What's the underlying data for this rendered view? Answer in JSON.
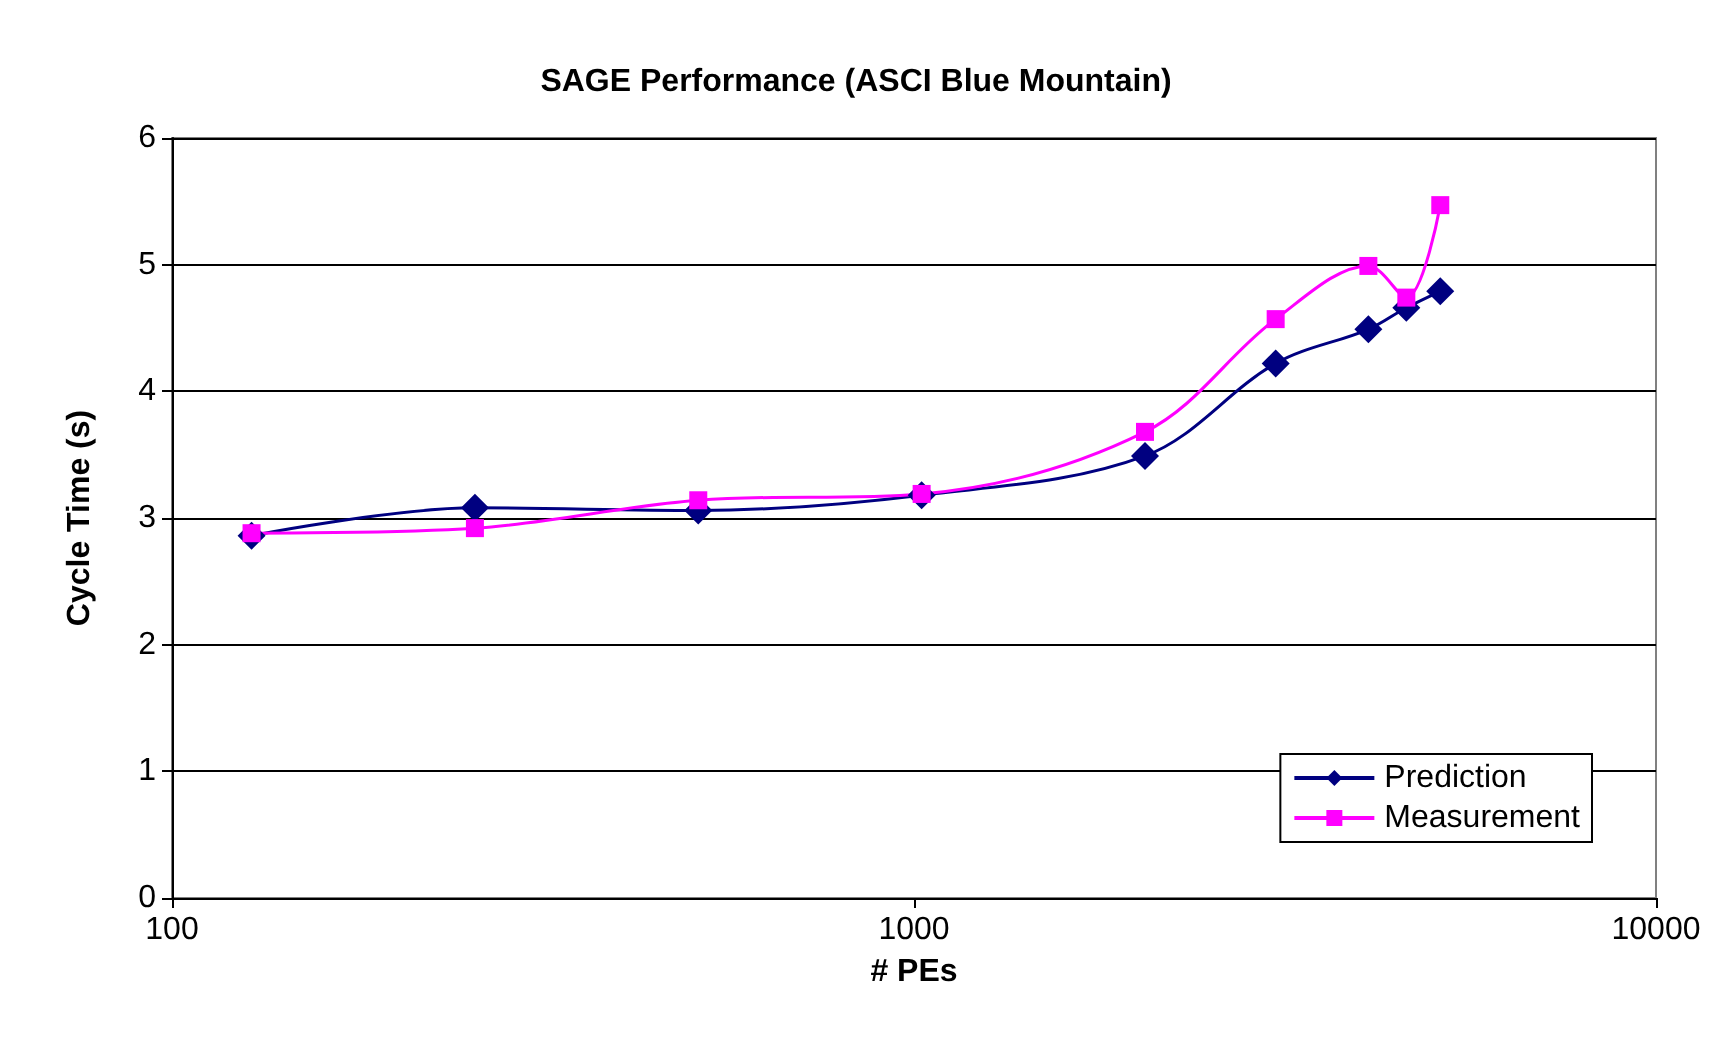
{
  "chart_data": {
    "type": "line",
    "title": "SAGE Performance (ASCI Blue Mountain)",
    "xlabel": "# PEs",
    "ylabel": "Cycle Time (s)",
    "x": [
      128,
      256,
      512,
      1024,
      2048,
      3072,
      4096,
      4608,
      5120
    ],
    "series": [
      {
        "name": "Prediction",
        "color": "#000080",
        "marker": "diamond",
        "values": [
          2.86,
          3.08,
          3.06,
          3.18,
          3.49,
          4.22,
          4.49,
          4.66,
          4.79
        ]
      },
      {
        "name": "Measurement",
        "color": "#ff00ff",
        "marker": "square",
        "values": [
          2.88,
          2.92,
          3.14,
          3.19,
          3.68,
          4.57,
          4.99,
          4.74,
          5.47
        ]
      }
    ],
    "log": "x",
    "xlim": [
      100,
      10000
    ],
    "xticks": [
      100,
      1000,
      10000
    ],
    "ylim": [
      0,
      6
    ],
    "yticks": [
      0,
      1,
      2,
      3,
      4,
      5,
      6
    ],
    "grid": "y",
    "legend": "bottom right",
    "line_style": "solid"
  }
}
